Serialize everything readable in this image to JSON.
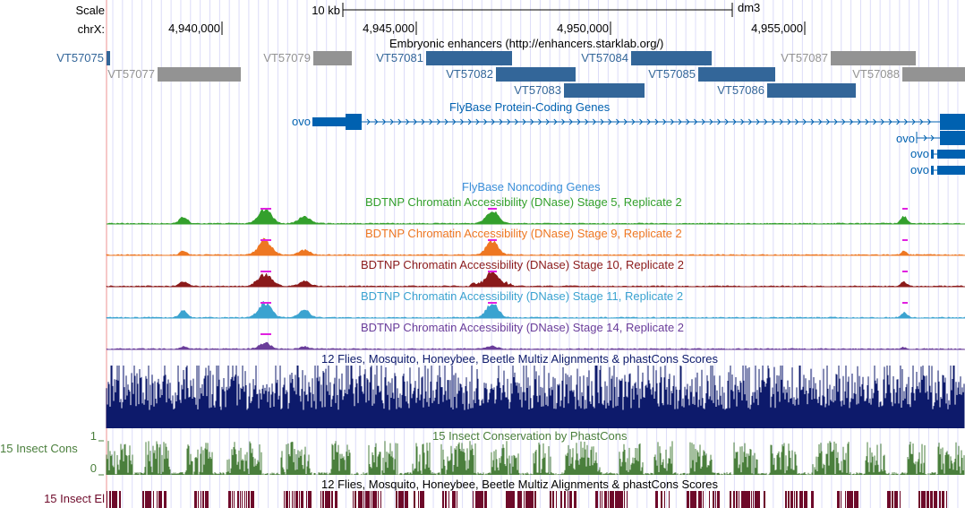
{
  "header": {
    "scale_label": "Scale",
    "chrom_label": "chrX:",
    "scale_bar_label": "10 kb",
    "assembly": "dm3",
    "ticks": [
      "4,940,000",
      "4,945,000",
      "4,950,000",
      "4,955,000"
    ]
  },
  "enhancers": {
    "title": "Embryonic enhancers (http://enhancers.starklab.org/)",
    "items": [
      {
        "name": "VT57075",
        "color": "#336699"
      },
      {
        "name": "VT57077",
        "color": "#939393"
      },
      {
        "name": "VT57079",
        "color": "#939393"
      },
      {
        "name": "VT57081",
        "color": "#336699"
      },
      {
        "name": "VT57082",
        "color": "#336699"
      },
      {
        "name": "VT57083",
        "color": "#336699"
      },
      {
        "name": "VT57084",
        "color": "#336699"
      },
      {
        "name": "VT57085",
        "color": "#336699"
      },
      {
        "name": "VT57086",
        "color": "#336699"
      },
      {
        "name": "VT57087",
        "color": "#939393"
      },
      {
        "name": "VT57088",
        "color": "#939393"
      }
    ]
  },
  "genes": {
    "title": "FlyBase Protein-Coding Genes",
    "color": "#0061b0",
    "items": [
      "ovo",
      "ovo",
      "ovo",
      "ovo"
    ]
  },
  "noncoding": {
    "title": "FlyBase Noncoding Genes"
  },
  "dnase": [
    {
      "title": "BDTNP Chromatin Accessibility (DNase) Stage 5, Replicate 2",
      "color": "#33a02c"
    },
    {
      "title": "BDTNP Chromatin Accessibility (DNase) Stage 9, Replicate 2",
      "color": "#ee7722"
    },
    {
      "title": "BDTNP Chromatin Accessibility (DNase) Stage 10, Replicate 2",
      "color": "#8b1a1a"
    },
    {
      "title": "BDTNP Chromatin Accessibility (DNase) Stage 11, Replicate 2",
      "color": "#3ba3d0"
    },
    {
      "title": "BDTNP Chromatin Accessibility (DNase) Stage 14, Replicate 2",
      "color": "#6a3d9a"
    }
  ],
  "multiz": {
    "title": "12 Flies, Mosquito, Honeybee, Beetle Multiz Alignments & phastCons Scores",
    "color": "#0d1a6b"
  },
  "cons": {
    "title": "15 Insect Conservation by PhastCons",
    "label": "15 Insect Cons",
    "ymax": "1",
    "ymin": "0",
    "color": "#4a7f3c"
  },
  "elements": {
    "title": "12 Flies, Mosquito, Honeybee, Beetle Multiz Alignments & phastCons Scores",
    "label": "15 Insect El",
    "color": "#6e0a2a"
  }
}
